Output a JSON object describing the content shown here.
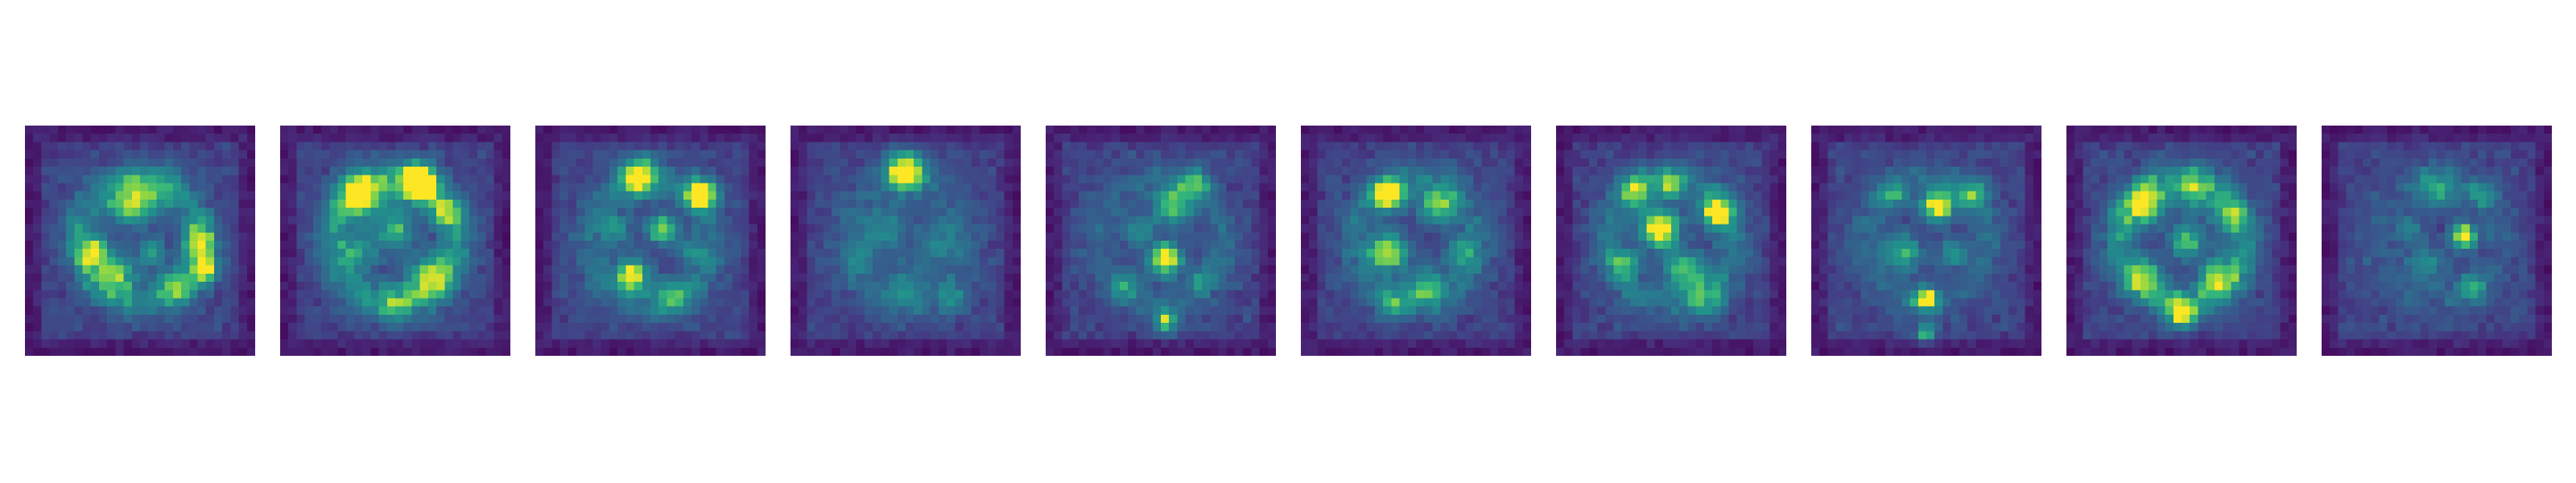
{
  "figure": {
    "colormap": "viridis",
    "background": "#ffffff",
    "panel_count": 10,
    "panel_grid": [
      28,
      28
    ],
    "panels": [
      {
        "index": 1,
        "blobs": [
          [
            0.45,
            0.35,
            0.1,
            0.55
          ],
          [
            0.75,
            0.5,
            0.08,
            0.6
          ],
          [
            0.3,
            0.55,
            0.08,
            0.65
          ],
          [
            0.4,
            0.65,
            0.1,
            0.55
          ],
          [
            0.55,
            0.3,
            0.12,
            0.35
          ],
          [
            0.65,
            0.7,
            0.1,
            0.4
          ],
          [
            0.78,
            0.62,
            0.06,
            0.85
          ],
          [
            0.55,
            0.55,
            0.07,
            0.45
          ]
        ],
        "ring": 0.35
      },
      {
        "index": 2,
        "blobs": [
          [
            0.35,
            0.3,
            0.12,
            0.65
          ],
          [
            0.6,
            0.25,
            0.1,
            0.85
          ],
          [
            0.5,
            0.45,
            0.1,
            0.5
          ],
          [
            0.65,
            0.65,
            0.12,
            0.5
          ],
          [
            0.35,
            0.55,
            0.1,
            0.35
          ],
          [
            0.72,
            0.38,
            0.08,
            0.45
          ],
          [
            0.5,
            0.78,
            0.1,
            0.3
          ]
        ],
        "ring": 0.4
      },
      {
        "index": 3,
        "blobs": [
          [
            0.45,
            0.22,
            0.1,
            0.7
          ],
          [
            0.72,
            0.3,
            0.08,
            0.85
          ],
          [
            0.55,
            0.45,
            0.08,
            0.6
          ],
          [
            0.42,
            0.65,
            0.08,
            0.75
          ],
          [
            0.35,
            0.45,
            0.08,
            0.4
          ],
          [
            0.6,
            0.75,
            0.1,
            0.35
          ],
          [
            0.68,
            0.55,
            0.08,
            0.3
          ]
        ],
        "ring": 0.25
      },
      {
        "index": 4,
        "blobs": [
          [
            0.5,
            0.2,
            0.1,
            0.85
          ],
          [
            0.4,
            0.45,
            0.12,
            0.35
          ],
          [
            0.65,
            0.5,
            0.12,
            0.3
          ],
          [
            0.5,
            0.7,
            0.12,
            0.3
          ],
          [
            0.3,
            0.6,
            0.08,
            0.25
          ],
          [
            0.7,
            0.75,
            0.08,
            0.25
          ]
        ],
        "ring": 0.15
      },
      {
        "index": 5,
        "blobs": [
          [
            0.52,
            0.58,
            0.08,
            0.9
          ],
          [
            0.55,
            0.35,
            0.1,
            0.55
          ],
          [
            0.4,
            0.45,
            0.08,
            0.35
          ],
          [
            0.52,
            0.85,
            0.06,
            0.6
          ],
          [
            0.65,
            0.25,
            0.08,
            0.35
          ],
          [
            0.35,
            0.7,
            0.08,
            0.25
          ],
          [
            0.68,
            0.68,
            0.06,
            0.3
          ]
        ],
        "ring": 0.2
      },
      {
        "index": 6,
        "blobs": [
          [
            0.38,
            0.3,
            0.08,
            0.95
          ],
          [
            0.38,
            0.55,
            0.1,
            0.7
          ],
          [
            0.6,
            0.35,
            0.1,
            0.55
          ],
          [
            0.55,
            0.7,
            0.1,
            0.45
          ],
          [
            0.7,
            0.55,
            0.08,
            0.4
          ],
          [
            0.4,
            0.78,
            0.08,
            0.35
          ]
        ],
        "ring": 0.25
      },
      {
        "index": 7,
        "blobs": [
          [
            0.45,
            0.45,
            0.1,
            0.85
          ],
          [
            0.7,
            0.38,
            0.08,
            0.8
          ],
          [
            0.35,
            0.28,
            0.08,
            0.5
          ],
          [
            0.55,
            0.62,
            0.1,
            0.55
          ],
          [
            0.3,
            0.6,
            0.08,
            0.35
          ],
          [
            0.65,
            0.75,
            0.1,
            0.35
          ],
          [
            0.5,
            0.25,
            0.08,
            0.4
          ]
        ],
        "ring": 0.3
      },
      {
        "index": 8,
        "blobs": [
          [
            0.55,
            0.35,
            0.08,
            0.85
          ],
          [
            0.5,
            0.75,
            0.06,
            0.75
          ],
          [
            0.4,
            0.55,
            0.1,
            0.45
          ],
          [
            0.7,
            0.3,
            0.08,
            0.4
          ],
          [
            0.62,
            0.55,
            0.08,
            0.35
          ],
          [
            0.35,
            0.3,
            0.08,
            0.3
          ],
          [
            0.5,
            0.9,
            0.05,
            0.55
          ]
        ],
        "ring": 0.2
      },
      {
        "index": 9,
        "blobs": [
          [
            0.35,
            0.35,
            0.1,
            0.55
          ],
          [
            0.55,
            0.3,
            0.1,
            0.4
          ],
          [
            0.52,
            0.5,
            0.08,
            0.6
          ],
          [
            0.5,
            0.82,
            0.07,
            0.75
          ],
          [
            0.65,
            0.65,
            0.1,
            0.45
          ],
          [
            0.35,
            0.65,
            0.1,
            0.4
          ],
          [
            0.7,
            0.4,
            0.08,
            0.35
          ]
        ],
        "ring": 0.45
      },
      {
        "index": 10,
        "blobs": [
          [
            0.62,
            0.48,
            0.06,
            0.9
          ],
          [
            0.5,
            0.28,
            0.1,
            0.4
          ],
          [
            0.45,
            0.6,
            0.1,
            0.35
          ],
          [
            0.65,
            0.7,
            0.08,
            0.35
          ],
          [
            0.38,
            0.45,
            0.08,
            0.25
          ],
          [
            0.7,
            0.3,
            0.08,
            0.3
          ]
        ],
        "ring": 0.15
      }
    ]
  }
}
